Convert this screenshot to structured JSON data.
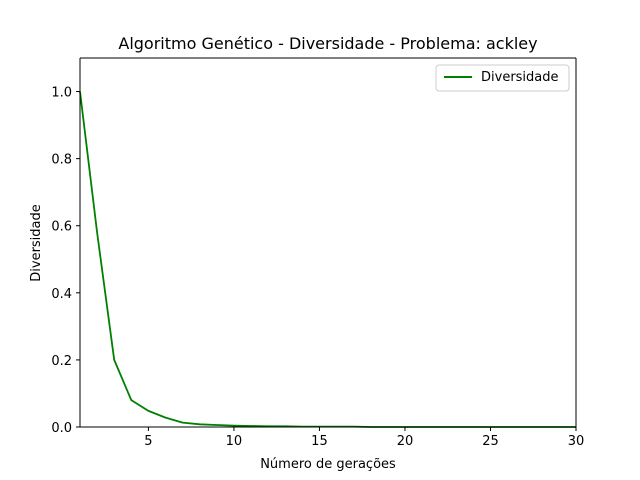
{
  "chart_data": {
    "type": "line",
    "title": "Algoritmo Genético - Diversidade - Problema: ackley",
    "xlabel": "Número de gerações",
    "ylabel": "Diversidade",
    "xlim": [
      1,
      30
    ],
    "ylim": [
      0,
      1.1
    ],
    "xticks": [
      5,
      10,
      15,
      20,
      25,
      30
    ],
    "yticks": [
      0.0,
      0.2,
      0.4,
      0.6,
      0.8,
      1.0
    ],
    "xtick_labels": [
      "5",
      "10",
      "15",
      "20",
      "25",
      "30"
    ],
    "ytick_labels": [
      "0.0",
      "0.2",
      "0.4",
      "0.6",
      "0.8",
      "1.0"
    ],
    "grid": false,
    "legend_position": "top-right",
    "series": [
      {
        "name": "Diversidade",
        "color": "#008000",
        "x": [
          1,
          2,
          3,
          4,
          5,
          6,
          7,
          8,
          9,
          10,
          11,
          12,
          13,
          14,
          15,
          16,
          17,
          18,
          19,
          20,
          21,
          22,
          23,
          24,
          25,
          26,
          27,
          28,
          29,
          30
        ],
        "values": [
          1.0,
          0.58,
          0.2,
          0.08,
          0.048,
          0.028,
          0.013,
          0.008,
          0.006,
          0.004,
          0.003,
          0.002,
          0.002,
          0.001,
          0.001,
          0.001,
          0.001,
          0.0,
          0.0,
          0.0,
          0.0,
          0.0,
          0.0,
          0.0,
          0.0,
          0.0,
          0.0,
          0.0,
          0.0,
          0.0
        ]
      }
    ]
  }
}
